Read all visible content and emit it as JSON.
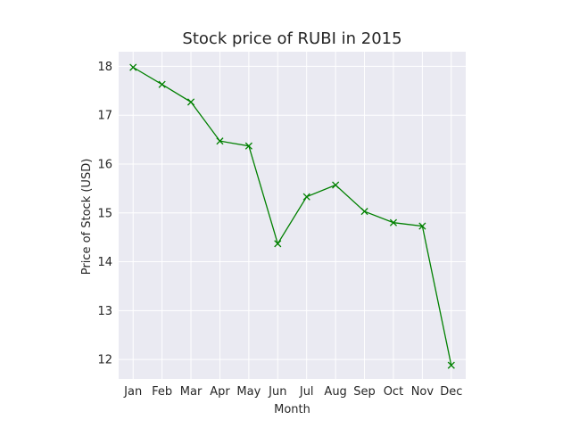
{
  "chart_data": {
    "type": "line",
    "title": "Stock price of RUBI in 2015",
    "xlabel": "Month",
    "ylabel": "Price of Stock (USD)",
    "categories": [
      "Jan",
      "Feb",
      "Mar",
      "Apr",
      "May",
      "Jun",
      "Jul",
      "Aug",
      "Sep",
      "Oct",
      "Nov",
      "Dec"
    ],
    "series": [
      {
        "values": [
          17.98,
          17.63,
          17.27,
          16.47,
          16.37,
          14.37,
          15.33,
          15.57,
          15.03,
          14.8,
          14.73,
          11.88
        ],
        "color": "#008000",
        "marker": "x"
      }
    ],
    "ylim": [
      11.6,
      18.3
    ],
    "yticks": [
      12,
      13,
      14,
      15,
      16,
      17,
      18
    ],
    "grid": true,
    "background": "#eaeaf2",
    "grid_color": "#ffffff",
    "legend": "none"
  }
}
